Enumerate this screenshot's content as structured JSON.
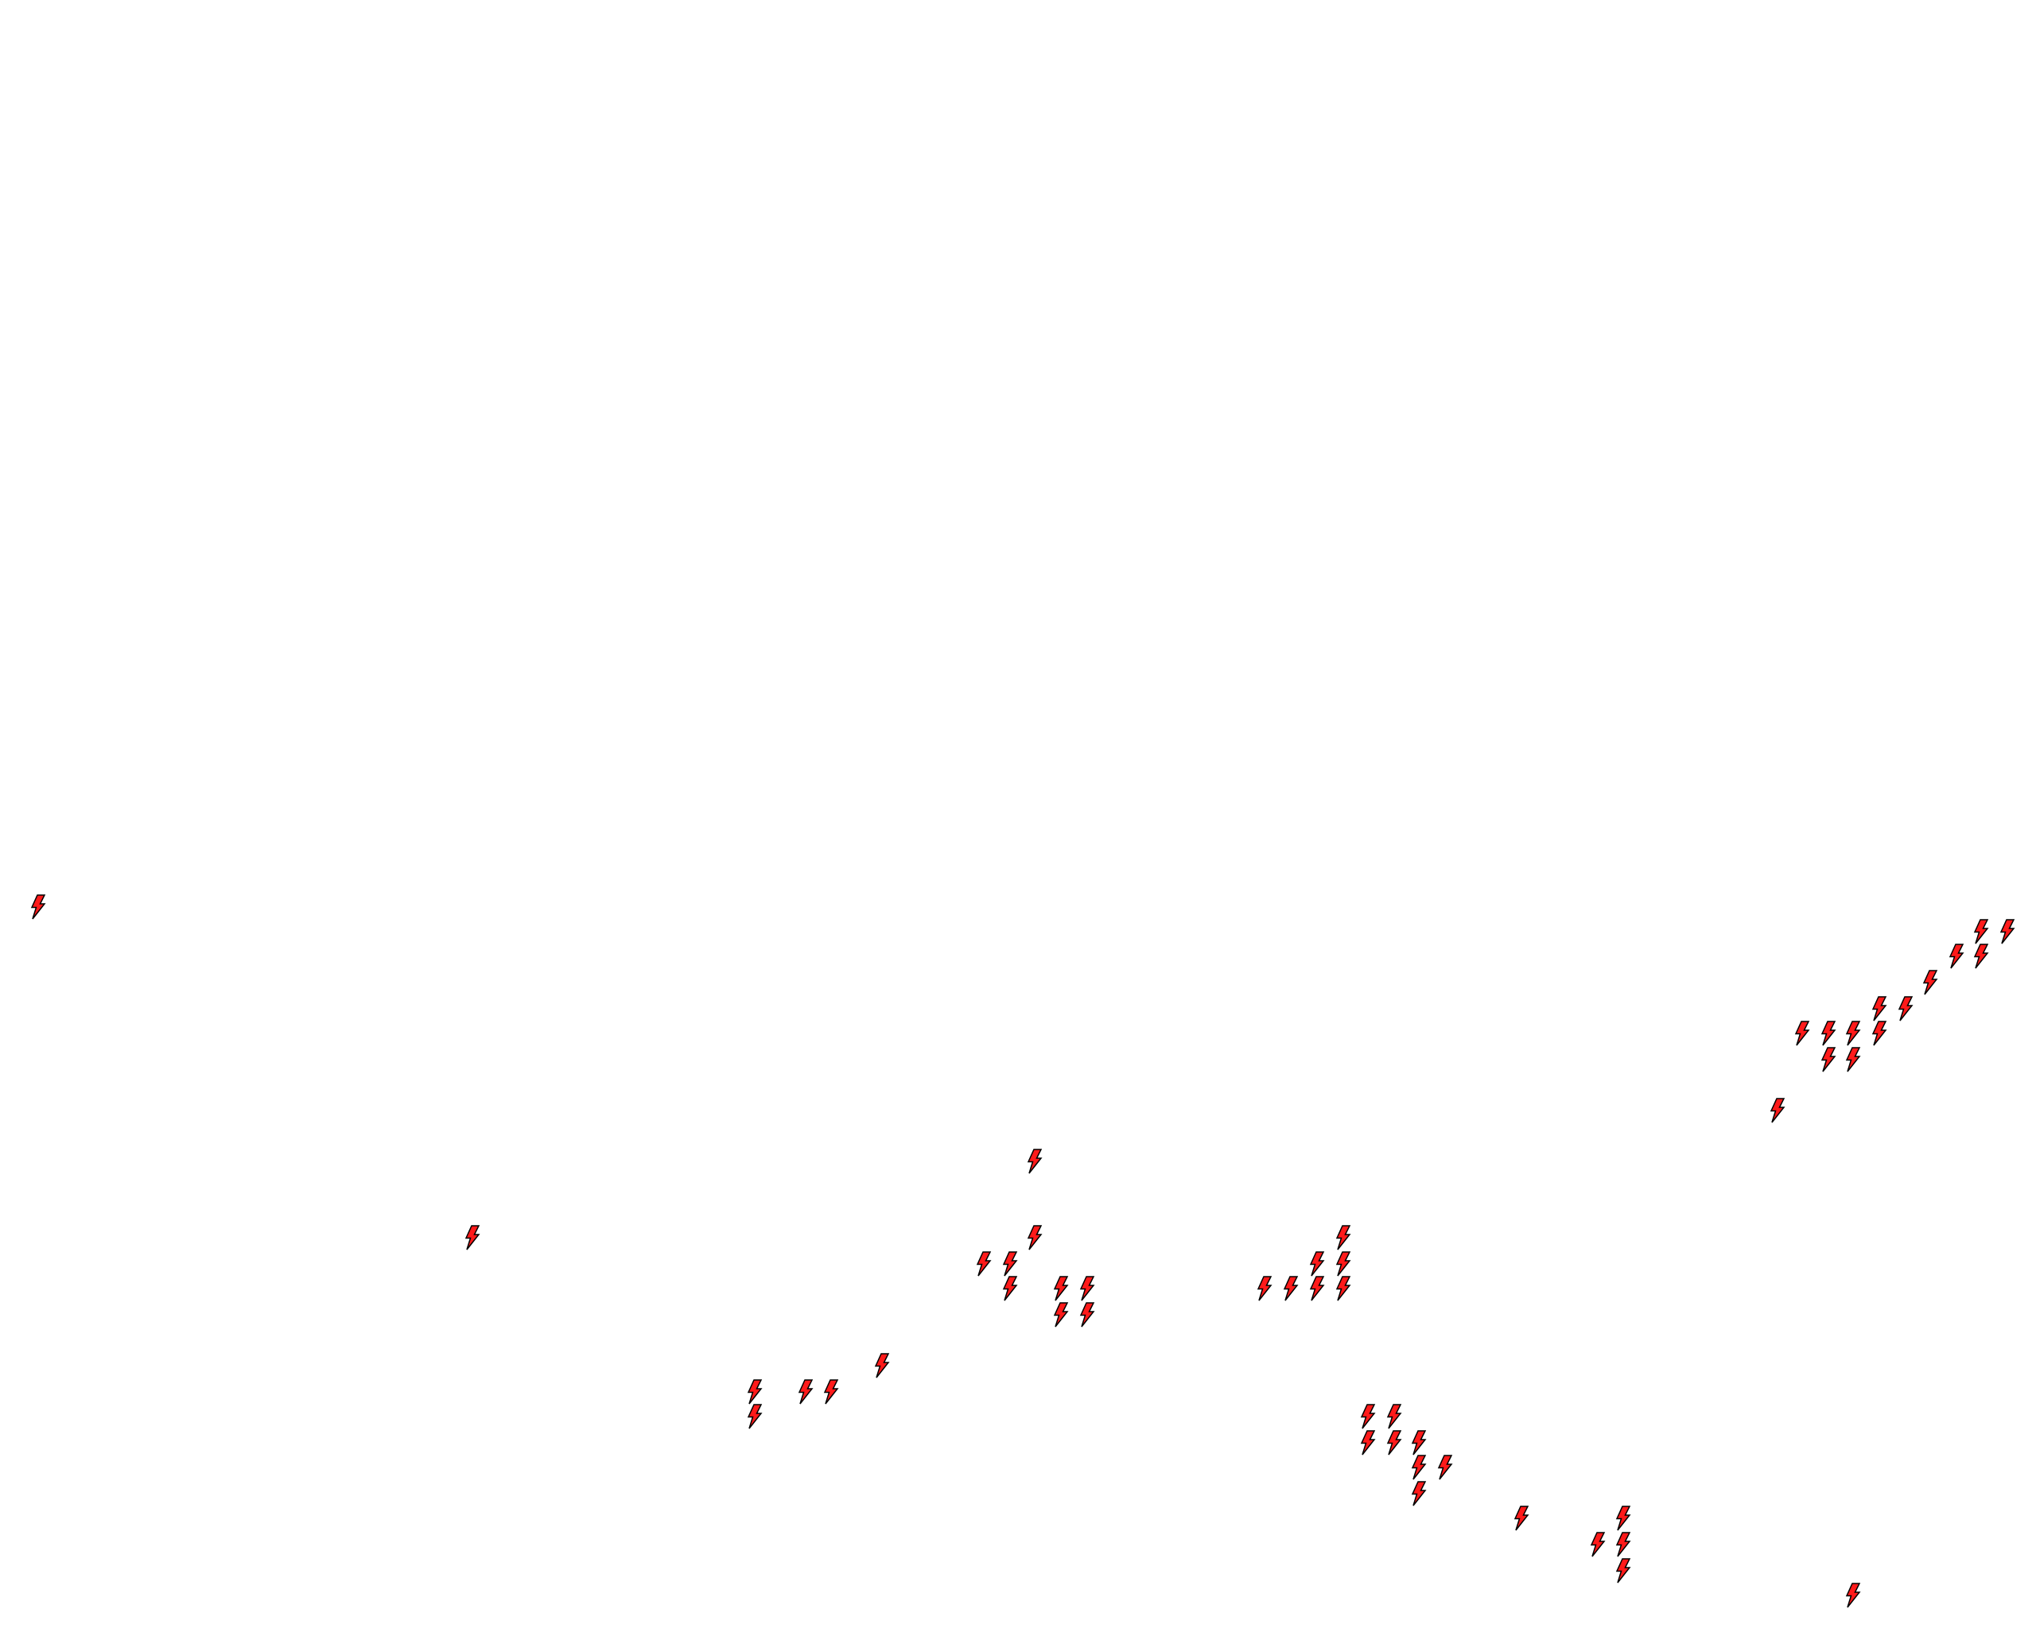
{
  "map": {
    "background_color": "#ffffff",
    "marker": {
      "icon": "lightning-bolt-icon",
      "fill_color": "#ff1a1a",
      "stroke_color": "#000000"
    }
  }
}
